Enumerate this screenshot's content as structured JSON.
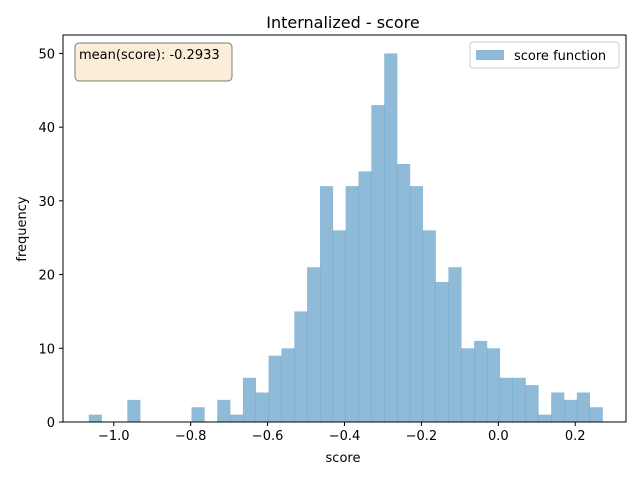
{
  "chart_data": {
    "type": "bar",
    "title": "Internalized - score",
    "xlabel": "score",
    "ylabel": "frequency",
    "xlim": [
      -1.132,
      0.332
    ],
    "ylim": [
      0,
      52.5
    ],
    "xticks": [
      -1.0,
      -0.8,
      -0.6,
      -0.4,
      -0.2,
      0.0,
      0.2
    ],
    "xtick_labels": [
      "−1.0",
      "−0.8",
      "−0.6",
      "−0.4",
      "−0.2",
      "0.0",
      "0.2"
    ],
    "yticks": [
      0,
      10,
      20,
      30,
      40,
      50
    ],
    "ytick_labels": [
      "0",
      "10",
      "20",
      "30",
      "40",
      "50"
    ],
    "grid": false,
    "legend_position": "top-right",
    "bin_start": -1.065,
    "bin_width": 0.0334,
    "series": [
      {
        "name": "score function",
        "color": "#1f77b4",
        "opacity": 0.5,
        "values": [
          1,
          0,
          0,
          3,
          0,
          0,
          0,
          0,
          2,
          0,
          3,
          1,
          6,
          4,
          9,
          10,
          15,
          21,
          32,
          26,
          32,
          34,
          43,
          50,
          35,
          32,
          26,
          19,
          21,
          10,
          11,
          10,
          6,
          6,
          5,
          1,
          4,
          3,
          4,
          2
        ]
      }
    ],
    "annotation": {
      "text": "mean(score): -0.2933",
      "position": "top-left",
      "box_face": "#f5deb3",
      "box_alpha": 0.5
    }
  }
}
